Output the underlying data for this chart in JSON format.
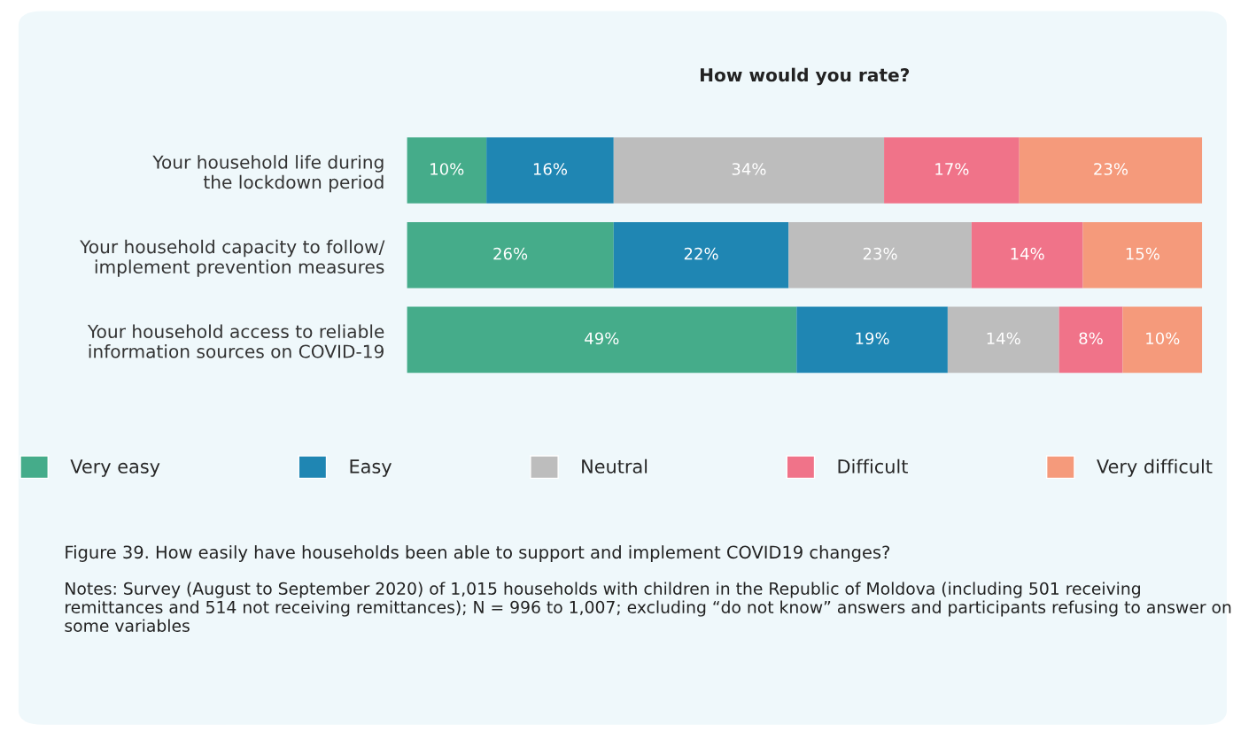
{
  "chart_data": {
    "type": "bar",
    "orientation": "horizontal",
    "stacked": true,
    "title": "How would you rate?",
    "categories": [
      "Your household life during\nthe lockdown period",
      "Your household capacity to follow/\nimplement prevention measures",
      "Your household access to reliable\ninformation sources on COVID-19"
    ],
    "xlim": [
      0,
      100
    ],
    "tick_labels": "y",
    "grid": false,
    "legend": "bottom",
    "series": [
      {
        "name": "Very easy",
        "color": "#45ac8a",
        "values": [
          10,
          26,
          49
        ],
        "value_labels": [
          "10%",
          "26%",
          "49%"
        ]
      },
      {
        "name": "Easy",
        "color": "#1f86b3",
        "values": [
          16,
          22,
          19
        ],
        "value_labels": [
          "16%",
          "22%",
          "19%"
        ]
      },
      {
        "name": "Neutral",
        "color": "#bdbdbd",
        "values": [
          34,
          23,
          14
        ],
        "value_labels": [
          "34%",
          "23%",
          "14%"
        ]
      },
      {
        "name": "Difficult",
        "color": "#f07389",
        "values": [
          17,
          14,
          8
        ],
        "value_labels": [
          "17%",
          "14%",
          "8%"
        ]
      },
      {
        "name": "Very difficult",
        "color": "#f59a7b",
        "values": [
          23,
          15,
          10
        ],
        "value_labels": [
          "23%",
          "15%",
          "10%"
        ]
      }
    ],
    "annotations": [
      "Figure 39. How easily have households been able to support and implement COVID19 changes?",
      "Notes: Survey (August to September 2020) of 1,015 households with children in the Republic of Moldova (including 501 receiving remittances and 514 not receiving remittances); N = 996 to 1,007; excluding “do not know” answers and participants refusing to answer on some variables"
    ]
  }
}
